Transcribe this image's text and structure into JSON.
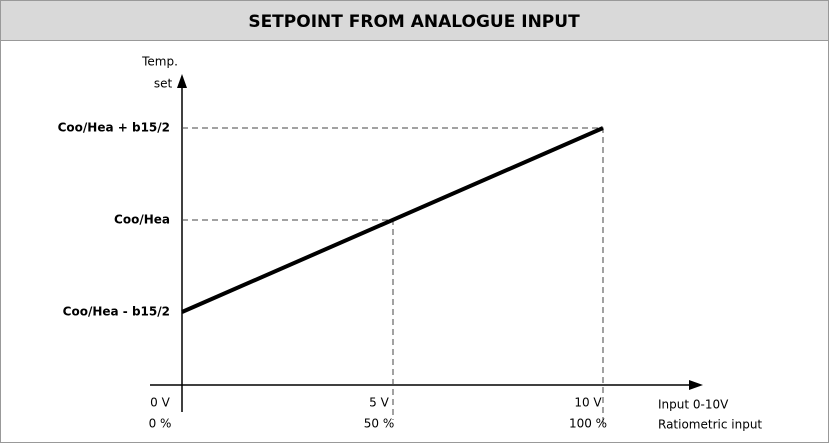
{
  "header": {
    "title": "SETPOINT FROM ANALOGUE INPUT"
  },
  "y_axis": {
    "label": [
      "Temp.",
      "set"
    ],
    "levels": [
      "Coo/Hea + b15/2",
      "Coo/Hea",
      "Coo/Hea - b15/2"
    ]
  },
  "x_axis": {
    "points": [
      [
        "0 V",
        "0 %"
      ],
      [
        "5 V",
        "50 %"
      ],
      [
        "10 V",
        "100 %"
      ]
    ],
    "label": [
      "Input 0-10V",
      "Ratiometric input"
    ]
  }
}
